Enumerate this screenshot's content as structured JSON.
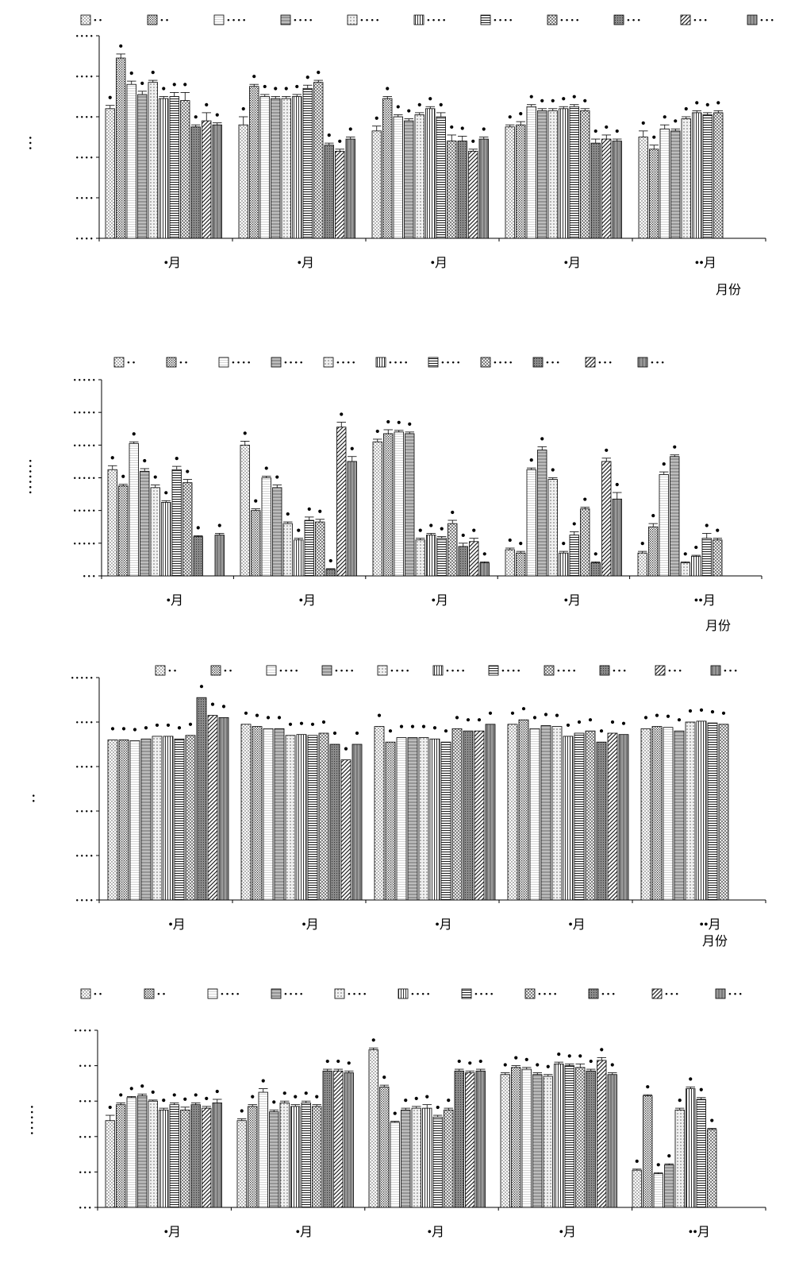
{
  "month_unit_label": "月份",
  "chart_data": [
    {
      "type": "bar",
      "categories": [
        "•月",
        "•月",
        "•月",
        "•月",
        "••月"
      ],
      "xlabel": "月份",
      "ylabel": "• • •",
      "yticks": [
        "• • • •",
        "• • • •",
        "• • • •",
        "• • • •",
        "• • • •",
        "• • • •"
      ],
      "ylim": [
        0,
        5
      ],
      "grid": false,
      "legend_position": "top",
      "series": [
        {
          "name": "• •",
          "values": [
            3.2,
            2.8,
            2.65,
            2.75,
            2.5
          ],
          "err": [
            0.08,
            0.2,
            0.12,
            0.05,
            0.15
          ]
        },
        {
          "name": "• •",
          "values": [
            4.45,
            3.75,
            3.45,
            2.8,
            2.2
          ],
          "err": [
            0.1,
            0.05,
            0.05,
            0.08,
            0.1
          ]
        },
        {
          "name": "• • • •",
          "values": [
            3.8,
            3.5,
            3.0,
            3.25,
            2.7
          ],
          "err": [
            0.08,
            0.05,
            0.05,
            0.05,
            0.1
          ]
        },
        {
          "name": "• • • •",
          "values": [
            3.55,
            3.45,
            2.9,
            3.15,
            2.65
          ],
          "err": [
            0.08,
            0.05,
            0.05,
            0.05,
            0.05
          ]
        },
        {
          "name": "• • • •",
          "values": [
            3.85,
            3.45,
            3.05,
            3.15,
            2.95
          ],
          "err": [
            0.05,
            0.05,
            0.05,
            0.05,
            0.05
          ]
        },
        {
          "name": "• • • •",
          "values": [
            3.45,
            3.5,
            3.2,
            3.2,
            3.1
          ],
          "err": [
            0.05,
            0.05,
            0.05,
            0.05,
            0.05
          ]
        },
        {
          "name": "• • • •",
          "values": [
            3.5,
            3.7,
            3.0,
            3.25,
            3.05
          ],
          "err": [
            0.1,
            0.08,
            0.1,
            0.05,
            0.05
          ]
        },
        {
          "name": "• • • •",
          "values": [
            3.4,
            3.85,
            2.4,
            3.15,
            3.1
          ],
          "err": [
            0.2,
            0.05,
            0.15,
            0.05,
            0.05
          ]
        },
        {
          "name": "• • •",
          "values": [
            2.75,
            2.3,
            2.4,
            2.35,
            null
          ],
          "err": [
            0.05,
            0.05,
            0.12,
            0.1,
            0
          ]
        },
        {
          "name": "• • •",
          "values": [
            2.9,
            2.15,
            2.15,
            2.45,
            null
          ],
          "err": [
            0.2,
            0.05,
            0.05,
            0.1,
            0
          ]
        },
        {
          "name": "• • •",
          "values": [
            2.8,
            2.45,
            2.45,
            2.4,
            null
          ],
          "err": [
            0.05,
            0.05,
            0.05,
            0.05,
            0
          ]
        }
      ]
    },
    {
      "type": "bar",
      "categories": [
        "•月",
        "•月",
        "•月",
        "•月",
        "••月"
      ],
      "xlabel": "月份",
      "ylabel": "• • • • • • •",
      "yticks": [
        "• • •",
        "• • • • •",
        "• • • • •",
        "• • • • •",
        "• • • • •",
        "• • • • •",
        "• • • • •"
      ],
      "ylim": [
        0,
        6
      ],
      "grid": false,
      "legend_position": "top",
      "series": [
        {
          "name": "• •",
          "values": [
            3.25,
            4.0,
            4.1,
            0.8,
            0.7
          ],
          "err": [
            0.12,
            0.12,
            0.08,
            0.05,
            0.05
          ]
        },
        {
          "name": "• •",
          "values": [
            2.75,
            2.0,
            4.35,
            0.7,
            1.5
          ],
          "err": [
            0.05,
            0.05,
            0.12,
            0.05,
            0.1
          ]
        },
        {
          "name": "• • • •",
          "values": [
            4.05,
            3.0,
            4.4,
            3.25,
            3.1
          ],
          "err": [
            0.05,
            0.05,
            0.05,
            0.05,
            0.08
          ]
        },
        {
          "name": "• • • •",
          "values": [
            3.2,
            2.7,
            4.35,
            3.85,
            3.65
          ],
          "err": [
            0.08,
            0.08,
            0.05,
            0.1,
            0.05
          ]
        },
        {
          "name": "• • • •",
          "values": [
            2.7,
            1.6,
            1.1,
            2.95,
            0.4
          ],
          "err": [
            0.08,
            0.05,
            0.05,
            0.05,
            0.03
          ]
        },
        {
          "name": "• • • •",
          "values": [
            2.25,
            1.1,
            1.25,
            0.7,
            0.6
          ],
          "err": [
            0.05,
            0.05,
            0.05,
            0.05,
            0.03
          ]
        },
        {
          "name": "• • • •",
          "values": [
            3.25,
            1.7,
            1.15,
            1.25,
            1.15
          ],
          "err": [
            0.1,
            0.1,
            0.05,
            0.1,
            0.15
          ]
        },
        {
          "name": "• • • •",
          "values": [
            2.85,
            1.65,
            1.6,
            2.05,
            1.1
          ],
          "err": [
            0.1,
            0.08,
            0.1,
            0.05,
            0.05
          ]
        },
        {
          "name": "• • •",
          "values": [
            1.2,
            0.2,
            0.9,
            0.4,
            null
          ],
          "err": [
            0.03,
            0.02,
            0.1,
            0.03,
            0
          ]
        },
        {
          "name": "• • •",
          "values": [
            null,
            4.55,
            1.05,
            3.5,
            null
          ],
          "err": [
            0,
            0.15,
            0.1,
            0.1,
            0
          ]
        },
        {
          "name": "• • •",
          "values": [
            1.25,
            3.5,
            0.4,
            2.35,
            null
          ],
          "err": [
            0.05,
            0.15,
            0.03,
            0.2,
            0
          ]
        }
      ]
    },
    {
      "type": "bar",
      "categories": [
        "•月",
        "•月",
        "•月",
        "•月",
        "••月"
      ],
      "xlabel": "月份",
      "ylabel": "• •",
      "yticks": [
        "• • • •",
        "• • • •",
        "• • • •",
        "• • • •",
        "• • • •",
        "• • • • •"
      ],
      "ylim": [
        0,
        5
      ],
      "grid": false,
      "legend_position": "top-right",
      "series": [
        {
          "name": "• •",
          "values": [
            3.6,
            3.95,
            3.9,
            3.95,
            3.85
          ]
        },
        {
          "name": "• •",
          "values": [
            3.6,
            3.9,
            3.55,
            4.05,
            3.9
          ]
        },
        {
          "name": "• • • •",
          "values": [
            3.58,
            3.85,
            3.65,
            3.85,
            3.88
          ]
        },
        {
          "name": "• • • •",
          "values": [
            3.62,
            3.85,
            3.65,
            3.92,
            3.8
          ]
        },
        {
          "name": "• • • •",
          "values": [
            3.68,
            3.7,
            3.65,
            3.9,
            4.0
          ]
        },
        {
          "name": "• • • •",
          "values": [
            3.68,
            3.72,
            3.62,
            3.68,
            4.02
          ]
        },
        {
          "name": "• • • •",
          "values": [
            3.62,
            3.7,
            3.55,
            3.75,
            3.98
          ]
        },
        {
          "name": "• • • •",
          "values": [
            3.7,
            3.75,
            3.85,
            3.8,
            3.95
          ]
        },
        {
          "name": "• • •",
          "values": [
            4.55,
            3.5,
            3.8,
            3.55,
            null
          ]
        },
        {
          "name": "• • •",
          "values": [
            4.15,
            3.15,
            3.8,
            3.75,
            null
          ]
        },
        {
          "name": "• • •",
          "values": [
            4.1,
            3.5,
            3.95,
            3.72,
            null
          ]
        }
      ]
    },
    {
      "type": "bar",
      "categories": [
        "•月",
        "•月",
        "•月",
        "•月",
        "••月"
      ],
      "xlabel": "",
      "ylabel": "• • • • • •",
      "yticks": [
        "• • •",
        "• • •",
        "• • •",
        "• • •",
        "• • •",
        "• • • •"
      ],
      "ylim": [
        0,
        5
      ],
      "grid": false,
      "legend_position": "top",
      "series": [
        {
          "name": "• •",
          "values": [
            2.45,
            2.45,
            4.45,
            3.75,
            1.05
          ],
          "err": [
            0.15,
            0.05,
            0.05,
            0.05,
            0.03
          ]
        },
        {
          "name": "• •",
          "values": [
            2.9,
            2.85,
            3.4,
            3.95,
            3.15
          ],
          "err": [
            0.05,
            0.05,
            0.05,
            0.05,
            0.03
          ]
        },
        {
          "name": "• • • •",
          "values": [
            3.1,
            3.25,
            2.4,
            3.9,
            0.95
          ],
          "err": [
            0.03,
            0.1,
            0.03,
            0.05,
            0.03
          ]
        },
        {
          "name": "• • • •",
          "values": [
            3.15,
            2.7,
            2.75,
            3.75,
            1.2
          ],
          "err": [
            0.05,
            0.05,
            0.05,
            0.05,
            0.03
          ]
        },
        {
          "name": "• • • •",
          "values": [
            3.0,
            2.95,
            2.8,
            3.7,
            2.75
          ],
          "err": [
            0.03,
            0.05,
            0.05,
            0.05,
            0.05
          ]
        },
        {
          "name": "• • • •",
          "values": [
            2.75,
            2.85,
            2.8,
            4.05,
            3.35
          ],
          "err": [
            0.05,
            0.05,
            0.1,
            0.05,
            0.05
          ]
        },
        {
          "name": "• • • •",
          "values": [
            2.9,
            2.95,
            2.55,
            4.0,
            3.05
          ],
          "err": [
            0.05,
            0.05,
            0.05,
            0.05,
            0.05
          ]
        },
        {
          "name": "• • • •",
          "values": [
            2.75,
            2.85,
            2.75,
            3.95,
            2.2
          ],
          "err": [
            0.08,
            0.05,
            0.05,
            0.1,
            0.03
          ]
        },
        {
          "name": "• • •",
          "values": [
            2.9,
            3.85,
            3.85,
            3.85,
            null
          ],
          "err": [
            0.05,
            0.05,
            0.05,
            0.05,
            0
          ]
        },
        {
          "name": "• • •",
          "values": [
            2.8,
            3.85,
            3.8,
            4.15,
            null
          ],
          "err": [
            0.05,
            0.05,
            0.05,
            0.08,
            0
          ]
        },
        {
          "name": "• • •",
          "values": [
            2.95,
            3.8,
            3.85,
            3.75,
            null
          ],
          "err": [
            0.1,
            0.05,
            0.05,
            0.05,
            0
          ]
        }
      ]
    }
  ]
}
